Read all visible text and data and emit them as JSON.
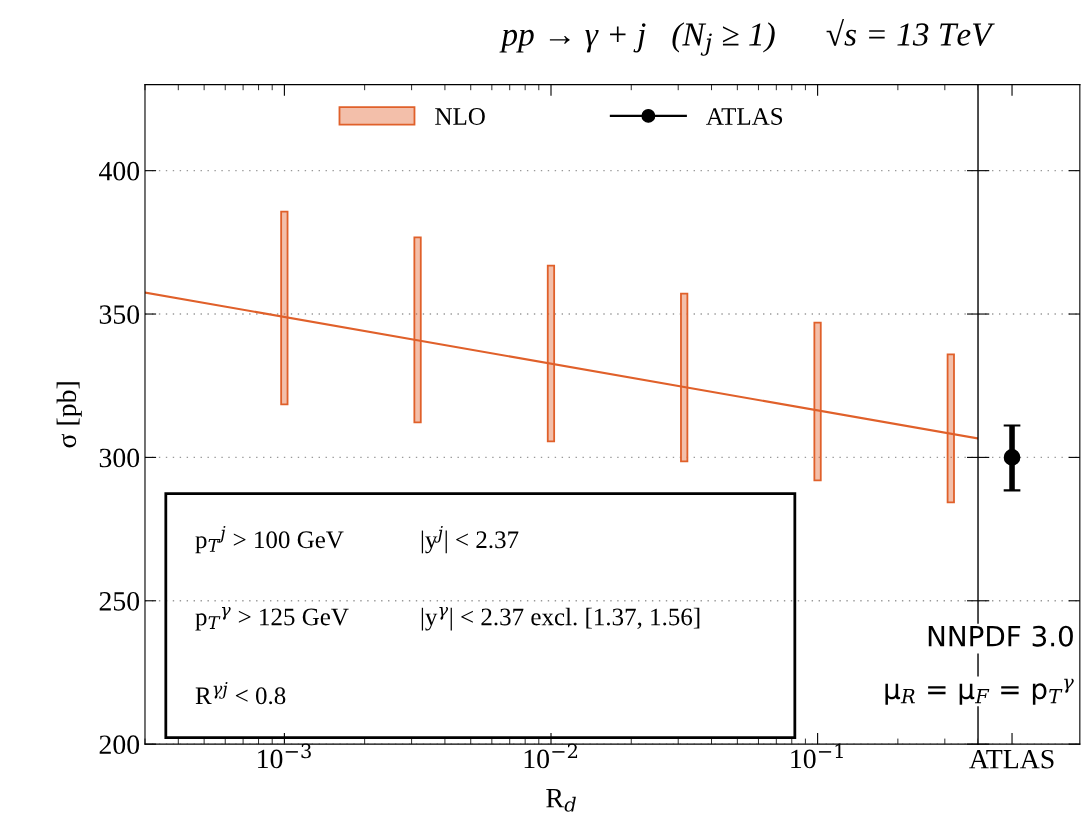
{
  "chart_data": [
    {
      "type": "bar",
      "title": "pp → γ + j   (N$_{j}$ ≥ 1)      √s = 13 TeV",
      "xlabel": "R$_{d}$",
      "ylabel": "σ [pb]",
      "log": "x",
      "xlim": [
        0.0003,
        0.4
      ],
      "xticks": [
        {
          "value": 0.001,
          "label": "10$^{−3}$"
        },
        {
          "value": 0.01,
          "label": "10$^{−2}$"
        },
        {
          "value": 0.1,
          "label": "10$^{−1}$"
        }
      ],
      "ylim": [
        200,
        430
      ],
      "yticks": [
        200,
        250,
        300,
        350,
        400
      ],
      "grid": "y",
      "legend": "top",
      "annotations": [
        "p$_{T}$$^{j}$ > 100 GeV",
        "|y$^{j}$| < 2.37",
        "p$_{T}$$^{γ}$ > 125 GeV",
        "|y$^{γ}$| < 2.37 excl. [1.37, 1.56]",
        "R$^{γj}$ < 0.8"
      ],
      "series": [
        {
          "name": "NLO",
          "type": "bar",
          "color": "#e0602a",
          "x": [
            0.001,
            0.00316,
            0.01,
            0.0316,
            0.1,
            0.316
          ],
          "base": [
            318.5,
            312.2,
            305.6,
            298.6,
            292.0,
            284.3
          ],
          "values": [
            67.2,
            64.5,
            61.3,
            58.5,
            55.0,
            51.6
          ]
        },
        {
          "type": "line",
          "color": "#e0602a",
          "x": [
            0.0003,
            0.4
          ],
          "values": [
            357.5,
            306.6
          ]
        }
      ]
    },
    {
      "type": "scatter",
      "categories": [
        "ATLAS"
      ],
      "ylim": [
        200,
        430
      ],
      "yticks": [
        200,
        250,
        300,
        350,
        400
      ],
      "tick_labels": "x",
      "grid": "y",
      "marker": "circle",
      "annotations": [
        "NNPDF 3.0",
        "μ$_{R}$ = μ$_{F}$ = p$_{T}$$^{γ}$"
      ],
      "series": [
        {
          "name": "ATLAS",
          "color": "#000000",
          "values": [
            300.0
          ],
          "errors": [
            [
              288.5,
              311.1
            ]
          ]
        }
      ]
    }
  ]
}
